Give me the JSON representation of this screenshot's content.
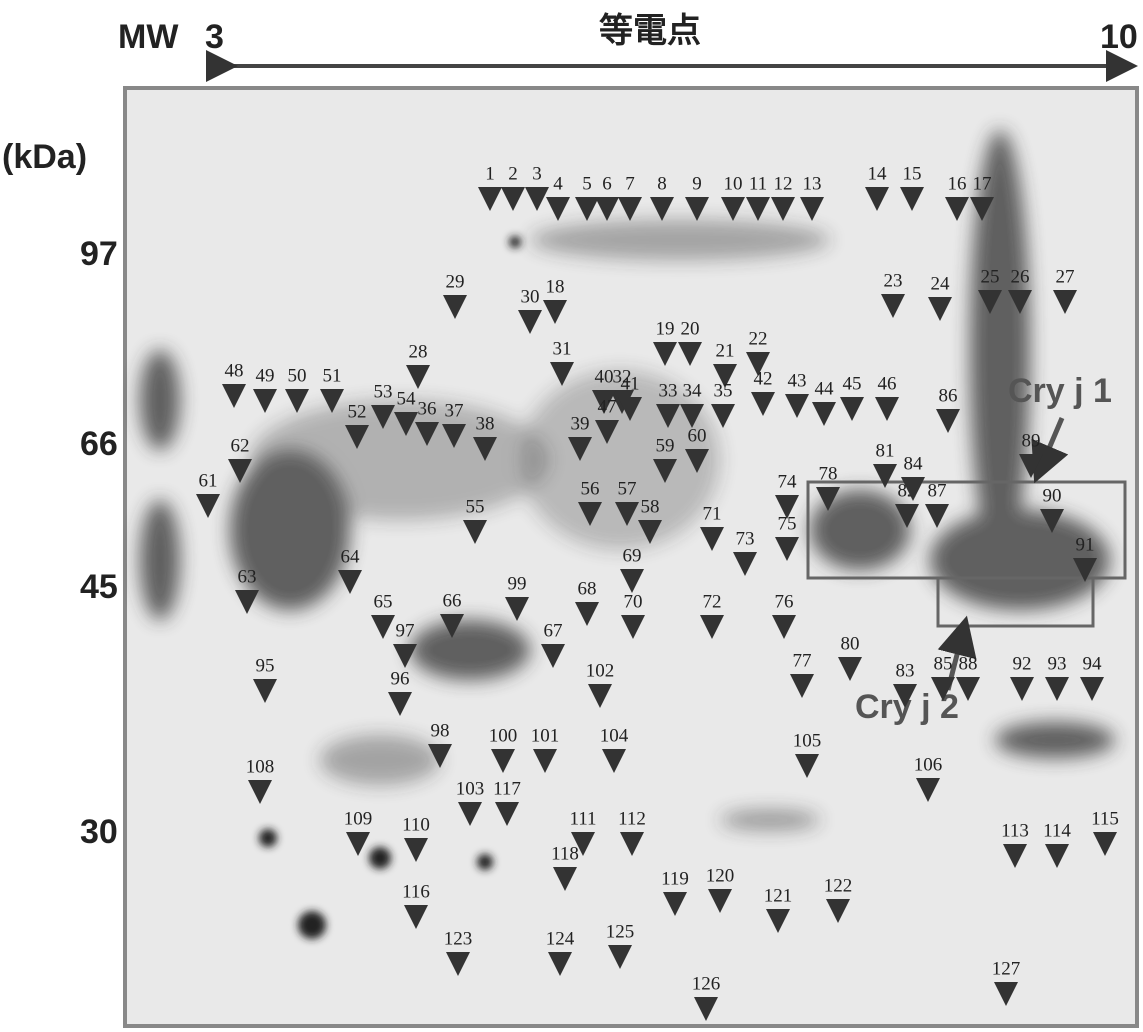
{
  "header": {
    "mw": "MW",
    "ph_low": "3",
    "axis_title": "等電点",
    "ph_high": "10",
    "unit": "(kDa)"
  },
  "mw_markers": [
    "97",
    "66",
    "45",
    "30"
  ],
  "annotations": {
    "cry_j1": "Cry j 1",
    "cry_j2": "Cry j 2"
  },
  "spots": [
    "1",
    "2",
    "3",
    "4",
    "5",
    "6",
    "7",
    "8",
    "9",
    "10",
    "11",
    "12",
    "13",
    "14",
    "15",
    "16",
    "17",
    "18",
    "19",
    "20",
    "21",
    "22",
    "23",
    "24",
    "25",
    "26",
    "27",
    "28",
    "29",
    "30",
    "31",
    "32",
    "33",
    "34",
    "35",
    "36",
    "37",
    "38",
    "39",
    "40",
    "41",
    "42",
    "43",
    "44",
    "45",
    "46",
    "47",
    "48",
    "49",
    "50",
    "51",
    "52",
    "53",
    "54",
    "55",
    "56",
    "57",
    "58",
    "59",
    "60",
    "61",
    "62",
    "63",
    "64",
    "65",
    "66",
    "67",
    "68",
    "69",
    "70",
    "71",
    "72",
    "73",
    "74",
    "75",
    "76",
    "77",
    "78",
    "80",
    "81",
    "82",
    "83",
    "84",
    "85",
    "86",
    "87",
    "88",
    "89",
    "90",
    "91",
    "92",
    "93",
    "94",
    "95",
    "96",
    "97",
    "98",
    "99",
    "100",
    "101",
    "102",
    "103",
    "104",
    "105",
    "106",
    "108",
    "109",
    "110",
    "111",
    "112",
    "113",
    "114",
    "115",
    "116",
    "117",
    "118",
    "119",
    "120",
    "121",
    "122",
    "123",
    "124",
    "125",
    "126",
    "127"
  ]
}
